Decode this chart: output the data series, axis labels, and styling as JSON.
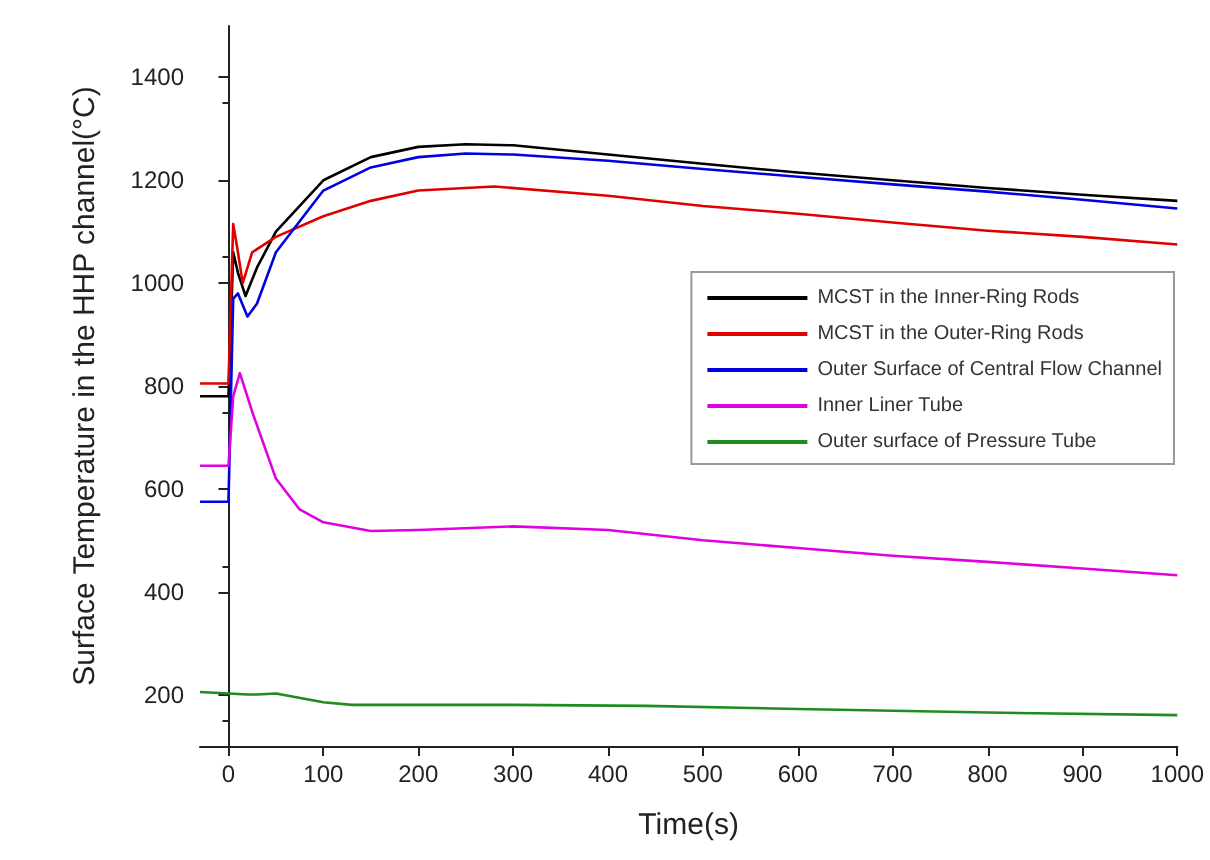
{
  "chart_data": {
    "type": "line",
    "xlabel": "Time(s)",
    "ylabel": "Surface Temperature in the HHP channel(°C)",
    "xlim": [
      -30,
      1000
    ],
    "xticks": [
      0,
      100,
      200,
      300,
      400,
      500,
      600,
      700,
      800,
      900,
      1000
    ],
    "ylim": [
      100,
      1500
    ],
    "yticks": [
      200,
      400,
      600,
      800,
      1000,
      1200,
      1400
    ],
    "grid": false,
    "legend": "right",
    "marker": "none",
    "line_style": "solid",
    "series": [
      {
        "name": "MCST in the Inner-Ring Rods",
        "color": "#000000",
        "x": [
          -30,
          0,
          5,
          10,
          18,
          30,
          50,
          100,
          150,
          200,
          250,
          300,
          400,
          500,
          600,
          700,
          800,
          900,
          1000
        ],
        "values": [
          780,
          780,
          1060,
          1020,
          975,
          1030,
          1100,
          1200,
          1245,
          1265,
          1270,
          1268,
          1250,
          1232,
          1215,
          1200,
          1185,
          1172,
          1160
        ]
      },
      {
        "name": "MCST in the Outer-Ring Rods",
        "color": "#e00000",
        "x": [
          -30,
          0,
          5,
          10,
          15,
          25,
          50,
          100,
          150,
          200,
          280,
          400,
          500,
          600,
          700,
          800,
          900,
          1000
        ],
        "values": [
          805,
          805,
          1115,
          1060,
          1000,
          1060,
          1090,
          1130,
          1160,
          1180,
          1188,
          1170,
          1150,
          1135,
          1118,
          1102,
          1090,
          1075
        ]
      },
      {
        "name": "Outer Surface of Central Flow Channel",
        "color": "#0000e0",
        "x": [
          -30,
          0,
          5,
          10,
          20,
          30,
          50,
          100,
          150,
          200,
          250,
          300,
          400,
          500,
          600,
          700,
          800,
          900,
          1000
        ],
        "values": [
          575,
          575,
          970,
          980,
          935,
          960,
          1060,
          1180,
          1225,
          1245,
          1252,
          1250,
          1238,
          1222,
          1207,
          1192,
          1178,
          1162,
          1145
        ]
      },
      {
        "name": "Inner Liner Tube",
        "color": "#e000e0",
        "x": [
          -30,
          0,
          5,
          12,
          25,
          50,
          75,
          100,
          150,
          200,
          300,
          400,
          500,
          600,
          700,
          800,
          900,
          1000
        ],
        "values": [
          645,
          645,
          780,
          825,
          750,
          620,
          560,
          535,
          518,
          520,
          527,
          520,
          500,
          485,
          470,
          458,
          445,
          432
        ]
      },
      {
        "name": "Outer surface of Pressure Tube",
        "color": "#1e8c1e",
        "x": [
          -30,
          20,
          30,
          50,
          80,
          100,
          130,
          300,
          440,
          600,
          800,
          1000
        ],
        "values": [
          205,
          200,
          200,
          202,
          192,
          185,
          180,
          180,
          178,
          172,
          165,
          160
        ]
      }
    ]
  }
}
